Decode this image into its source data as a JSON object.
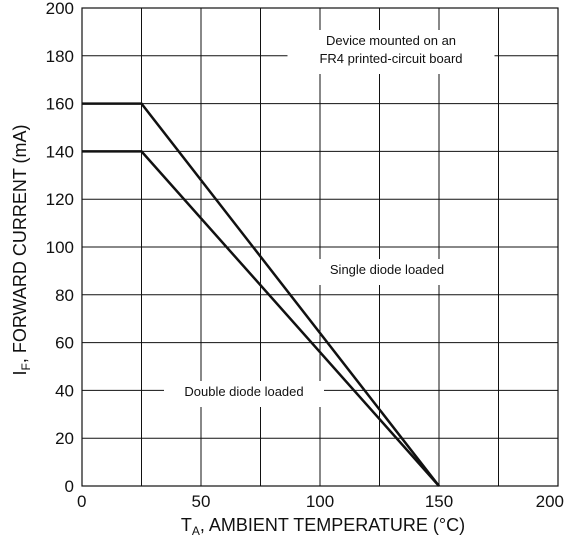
{
  "chart_data": {
    "type": "line",
    "title": "",
    "xlabel": {
      "main": "T",
      "subscript": "A",
      "rest": ", AMBIENT TEMPERATURE (°C)"
    },
    "ylabel": {
      "main": "I",
      "subscript": "F",
      "rest": ", FORWARD CURRENT (mA)"
    },
    "xlim": [
      0,
      200
    ],
    "ylim": [
      0,
      200
    ],
    "x_ticks": [
      0,
      50,
      100,
      150,
      200
    ],
    "y_ticks": [
      0,
      20,
      40,
      60,
      80,
      100,
      120,
      140,
      160,
      180,
      200
    ],
    "x_minor_gridlines": [
      25,
      75,
      125,
      175
    ],
    "grid": true,
    "series": [
      {
        "name": "Single diode loaded",
        "points": [
          {
            "x": 0,
            "y": 160
          },
          {
            "x": 25,
            "y": 160
          },
          {
            "x": 150,
            "y": 0
          }
        ]
      },
      {
        "name": "Double diode loaded",
        "points": [
          {
            "x": 0,
            "y": 140
          },
          {
            "x": 25,
            "y": 140
          },
          {
            "x": 150,
            "y": 0
          }
        ]
      }
    ],
    "annotations": [
      {
        "id": "device-note",
        "lines": [
          "Device mounted on an",
          "FR4 printed-circuit board"
        ]
      },
      {
        "id": "single-label",
        "lines": [
          "Single diode loaded"
        ]
      },
      {
        "id": "double-label",
        "lines": [
          "Double diode loaded"
        ]
      }
    ],
    "colors": {
      "grid": "#111111",
      "series": "#111111",
      "background": "#ffffff"
    }
  }
}
